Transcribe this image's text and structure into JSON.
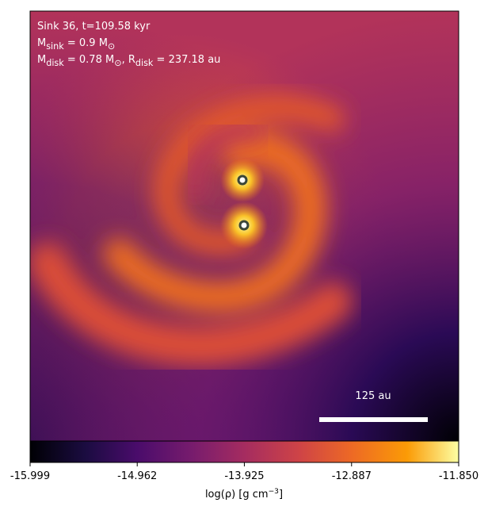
{
  "chart_data": {
    "type": "image",
    "annotations": [
      [
        {
          "text": "Sink 36, t=109.58 kyr"
        }
      ],
      [
        {
          "text": "M"
        },
        {
          "sub": "sink"
        },
        {
          "text": " = 0.9 M"
        },
        {
          "sub": "⊙"
        }
      ],
      [
        {
          "text": "M"
        },
        {
          "sub": "disk"
        },
        {
          "text": " = 0.78 M"
        },
        {
          "sub": "⊙"
        },
        {
          "text": ", R"
        },
        {
          "sub": "disk"
        },
        {
          "text": " = 237.18 au"
        }
      ]
    ],
    "scale_bar_label": "125 au",
    "colorbar": {
      "lim": [
        -15.999,
        -11.85
      ],
      "ticks": [
        -15.999,
        -14.962,
        -13.925,
        -12.887,
        {
          "value": -11.85,
          "label": "-11.850"
        }
      ],
      "label": [
        {
          "text": "log(ρ) [g cm"
        },
        {
          "sup": "−3"
        },
        {
          "text": "]"
        }
      ]
    }
  }
}
